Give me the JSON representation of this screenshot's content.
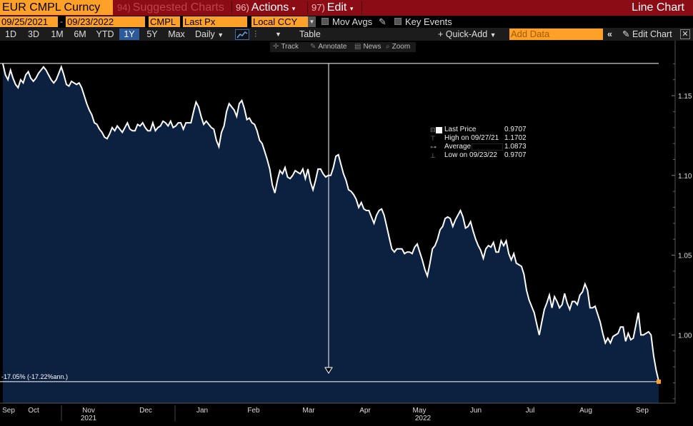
{
  "toolbar": {
    "ticker": "EUR CMPL Curncy",
    "suggested": {
      "num": "94)",
      "label": "Suggested Charts"
    },
    "actions": {
      "num": "96)",
      "label": "Actions"
    },
    "edit": {
      "num": "97)",
      "label": "Edit"
    },
    "chart_type": "Line Chart"
  },
  "row2": {
    "start_date": "09/25/2021",
    "end_date": "09/23/2022",
    "security": "CMPL",
    "field": "Last Px",
    "currency": "Local CCY",
    "mov_avgs": "Mov Avgs",
    "key_events": "Key Events"
  },
  "row3": {
    "periods": [
      "1D",
      "3D",
      "1M",
      "6M",
      "YTD",
      "1Y",
      "5Y",
      "Max"
    ],
    "active_period": "1Y",
    "frequency": "Daily",
    "table": "Table",
    "quick_add": "Quick-Add",
    "add_data_placeholder": "Add Data",
    "edit_chart": "Edit Chart"
  },
  "chart_tools": {
    "track": "Track",
    "annotate": "Annotate",
    "news": "News",
    "zoom": "Zoom"
  },
  "legend": {
    "last_price_label": "Last Price",
    "last_price": "0.9707",
    "high_label": "High on 09/27/21",
    "high": "1.1702",
    "average_label": "Average",
    "average": "1.0873",
    "low_label": "Low on 09/23/22",
    "low": "0.9707"
  },
  "annotation": "-17.05% (-17.22%ann.)",
  "colors": {
    "fill": "#0c2040",
    "line": "#ffffff",
    "accent": "#ffa028",
    "topbar": "#8b0c14"
  },
  "chart_data": {
    "type": "area",
    "series": [
      {
        "name": "Last Price",
        "x_start": "2021-09-25",
        "x_end": "2022-09-23",
        "values": [
          1.17,
          1.163,
          1.16,
          1.166,
          1.161,
          1.157,
          1.155,
          1.16,
          1.158,
          1.163,
          1.165,
          1.161,
          1.159,
          1.161,
          1.164,
          1.166,
          1.168,
          1.166,
          1.163,
          1.16,
          1.158,
          1.16,
          1.164,
          1.168,
          1.163,
          1.157,
          1.156,
          1.159,
          1.158,
          1.157,
          1.158,
          1.155,
          1.15,
          1.145,
          1.141,
          1.138,
          1.133,
          1.132,
          1.129,
          1.127,
          1.124,
          1.123,
          1.126,
          1.13,
          1.128,
          1.131,
          1.129,
          1.127,
          1.13,
          1.133,
          1.129,
          1.128,
          1.128,
          1.132,
          1.131,
          1.133,
          1.13,
          1.128,
          1.128,
          1.133,
          1.128,
          1.13,
          1.131,
          1.134,
          1.133,
          1.131,
          1.134,
          1.13,
          1.131,
          1.133,
          1.133,
          1.129,
          1.133,
          1.133,
          1.133,
          1.14,
          1.146,
          1.143,
          1.137,
          1.132,
          1.134,
          1.132,
          1.13,
          1.129,
          1.122,
          1.118,
          1.127,
          1.131,
          1.14,
          1.145,
          1.143,
          1.141,
          1.137,
          1.145,
          1.147,
          1.142,
          1.135,
          1.136,
          1.133,
          1.132,
          1.128,
          1.122,
          1.12,
          1.115,
          1.11,
          1.104,
          1.094,
          1.089,
          1.097,
          1.103,
          1.101,
          1.105,
          1.099,
          1.098,
          1.1,
          1.103,
          1.102,
          1.101,
          1.104,
          1.098,
          1.104,
          1.096,
          1.091,
          1.097,
          1.104,
          1.104,
          1.101,
          1.099,
          1.1,
          1.1,
          1.105,
          1.112,
          1.113,
          1.107,
          1.101,
          1.097,
          1.091,
          1.09,
          1.088,
          1.085,
          1.08,
          1.083,
          1.079,
          1.078,
          1.078,
          1.074,
          1.07,
          1.075,
          1.078,
          1.079,
          1.075,
          1.068,
          1.061,
          1.054,
          1.052,
          1.054,
          1.054,
          1.054,
          1.051,
          1.052,
          1.052,
          1.051,
          1.055,
          1.057,
          1.052,
          1.047,
          1.041,
          1.037,
          1.045,
          1.054,
          1.056,
          1.06,
          1.066,
          1.068,
          1.073,
          1.074,
          1.073,
          1.068,
          1.072,
          1.075,
          1.078,
          1.074,
          1.067,
          1.068,
          1.071,
          1.065,
          1.06,
          1.056,
          1.053,
          1.048,
          1.054,
          1.056,
          1.055,
          1.058,
          1.052,
          1.052,
          1.059,
          1.056,
          1.059,
          1.051,
          1.047,
          1.051,
          1.045,
          1.044,
          1.043,
          1.038,
          1.028,
          1.022,
          1.018,
          1.014,
          1.007,
          1.0,
          1.008,
          1.016,
          1.02,
          1.025,
          1.017,
          1.024,
          1.021,
          1.017,
          1.019,
          1.026,
          1.02,
          1.016,
          1.021,
          1.021,
          1.019,
          1.025,
          1.027,
          1.032,
          1.028,
          1.017,
          1.017,
          1.018,
          1.013,
          1.008,
          1.001,
          0.995,
          0.998,
          0.995,
          0.999,
          1.0,
          1.001,
          1.005,
          1.005,
          0.996,
          1.001,
          0.997,
          0.998,
          1.006,
          1.014,
          1.0,
          1.0,
          1.001,
          1.002,
          1.0,
          0.987,
          0.978,
          0.971
        ]
      }
    ],
    "x_ticks": [
      "Sep",
      "Oct",
      "Nov",
      "Dec",
      "Jan",
      "Feb",
      "Mar",
      "Apr",
      "May",
      "Jun",
      "Jul",
      "Aug",
      "Sep"
    ],
    "year_labels": [
      "2021",
      "2022"
    ],
    "y_ticks": [
      "1.15",
      "1.10",
      "1.05",
      "1.00"
    ],
    "ylim": [
      0.955,
      1.18
    ],
    "high_line": 1.1702,
    "last_value": 0.9707
  }
}
